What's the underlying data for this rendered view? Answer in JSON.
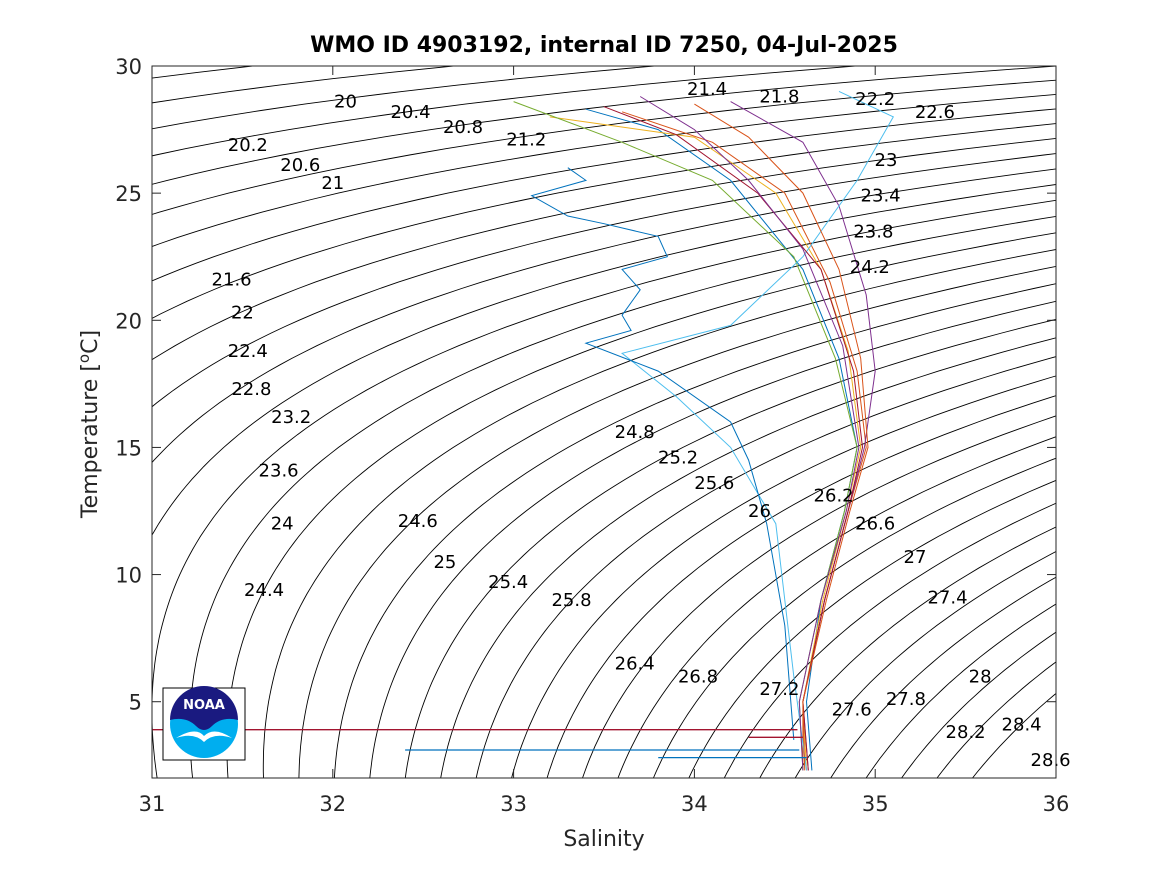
{
  "chart_data": {
    "type": "line",
    "title": "WMO ID 4903192, internal ID 7250, 04-Jul-2025",
    "xlabel": "Salinity",
    "ylabel": "Temperature [°C]",
    "ylabel_main": "Temperature [",
    "ylabel_sup": "o",
    "ylabel_end": "C]",
    "xlim": [
      31,
      36
    ],
    "ylim": [
      2,
      30
    ],
    "xticks": [
      31,
      32,
      33,
      34,
      35,
      36
    ],
    "yticks": [
      5,
      10,
      15,
      20,
      25,
      30
    ],
    "grid": false,
    "legend": "none",
    "logo": "NOAA",
    "density_contours": {
      "color": "#000000",
      "labels": [
        {
          "text": "20",
          "s": 32.07,
          "t": 28.6
        },
        {
          "text": "20.4",
          "s": 32.43,
          "t": 28.2
        },
        {
          "text": "20.8",
          "s": 32.72,
          "t": 27.6
        },
        {
          "text": "21.2",
          "s": 33.07,
          "t": 27.1
        },
        {
          "text": "21.4",
          "s": 34.07,
          "t": 29.1
        },
        {
          "text": "21.8",
          "s": 34.47,
          "t": 28.8
        },
        {
          "text": "22.2",
          "s": 35.0,
          "t": 28.7
        },
        {
          "text": "22.6",
          "s": 35.33,
          "t": 28.2
        },
        {
          "text": "20.2",
          "s": 31.53,
          "t": 26.9
        },
        {
          "text": "20.6",
          "s": 31.82,
          "t": 26.1
        },
        {
          "text": "21",
          "s": 32.0,
          "t": 25.4
        },
        {
          "text": "23",
          "s": 35.06,
          "t": 26.3
        },
        {
          "text": "23.4",
          "s": 35.03,
          "t": 24.9
        },
        {
          "text": "23.8",
          "s": 34.99,
          "t": 23.5
        },
        {
          "text": "24.2",
          "s": 34.97,
          "t": 22.1
        },
        {
          "text": "21.6",
          "s": 31.44,
          "t": 21.6
        },
        {
          "text": "22",
          "s": 31.5,
          "t": 20.3
        },
        {
          "text": "22.4",
          "s": 31.53,
          "t": 18.8
        },
        {
          "text": "22.8",
          "s": 31.55,
          "t": 17.3
        },
        {
          "text": "23.2",
          "s": 31.77,
          "t": 16.2
        },
        {
          "text": "23.6",
          "s": 31.7,
          "t": 14.1
        },
        {
          "text": "24",
          "s": 31.72,
          "t": 12.0
        },
        {
          "text": "24.4",
          "s": 31.62,
          "t": 9.4
        },
        {
          "text": "24.6",
          "s": 32.47,
          "t": 12.1
        },
        {
          "text": "25",
          "s": 32.62,
          "t": 10.5
        },
        {
          "text": "25.4",
          "s": 32.97,
          "t": 9.7
        },
        {
          "text": "25.8",
          "s": 33.32,
          "t": 9.0
        },
        {
          "text": "24.8",
          "s": 33.67,
          "t": 15.6
        },
        {
          "text": "25.2",
          "s": 33.91,
          "t": 14.6
        },
        {
          "text": "25.6",
          "s": 34.11,
          "t": 13.6
        },
        {
          "text": "26",
          "s": 34.36,
          "t": 12.5
        },
        {
          "text": "26.2",
          "s": 34.77,
          "t": 13.1
        },
        {
          "text": "26.6",
          "s": 35.0,
          "t": 12.0
        },
        {
          "text": "27",
          "s": 35.22,
          "t": 10.7
        },
        {
          "text": "27.4",
          "s": 35.4,
          "t": 9.1
        },
        {
          "text": "26.4",
          "s": 33.67,
          "t": 6.5
        },
        {
          "text": "26.8",
          "s": 34.02,
          "t": 6.0
        },
        {
          "text": "27.2",
          "s": 34.47,
          "t": 5.5
        },
        {
          "text": "27.6",
          "s": 34.87,
          "t": 4.7
        },
        {
          "text": "27.8",
          "s": 35.17,
          "t": 5.1
        },
        {
          "text": "28",
          "s": 35.58,
          "t": 6.0
        },
        {
          "text": "28.2",
          "s": 35.5,
          "t": 3.8
        },
        {
          "text": "28.4",
          "s": 35.81,
          "t": 4.1
        },
        {
          "text": "28.6",
          "s": 35.97,
          "t": 2.7
        }
      ]
    },
    "series": [
      {
        "color": "#0072BD",
        "values": [
          [
            34.65,
            2.3
          ],
          [
            34.62,
            5.0
          ],
          [
            34.7,
            9.0
          ],
          [
            34.83,
            12.5
          ],
          [
            34.9,
            15.0
          ],
          [
            34.8,
            18.5
          ],
          [
            34.6,
            22.0
          ],
          [
            34.2,
            25.5
          ],
          [
            33.8,
            27.5
          ],
          [
            33.4,
            28.3
          ]
        ]
      },
      {
        "color": "#D95319",
        "values": [
          [
            34.6,
            2.3
          ],
          [
            34.6,
            5.0
          ],
          [
            34.72,
            9.0
          ],
          [
            34.85,
            12.5
          ],
          [
            34.95,
            15.0
          ],
          [
            34.9,
            18.0
          ],
          [
            34.75,
            21.5
          ],
          [
            34.5,
            25.0
          ],
          [
            34.1,
            27.0
          ],
          [
            33.6,
            28.2
          ]
        ]
      },
      {
        "color": "#EDB120",
        "values": [
          [
            34.62,
            2.3
          ],
          [
            34.6,
            5.0
          ],
          [
            34.71,
            9.0
          ],
          [
            34.84,
            12.5
          ],
          [
            34.92,
            15.0
          ],
          [
            34.85,
            18.8
          ],
          [
            34.7,
            22.0
          ],
          [
            34.45,
            25.0
          ],
          [
            34.0,
            27.2
          ],
          [
            33.2,
            28.0
          ]
        ]
      },
      {
        "color": "#7E2F8E",
        "values": [
          [
            34.63,
            2.3
          ],
          [
            34.6,
            5.0
          ],
          [
            34.72,
            9.0
          ],
          [
            34.85,
            12.5
          ],
          [
            34.94,
            15.0
          ],
          [
            35.0,
            18.0
          ],
          [
            34.95,
            21.0
          ],
          [
            34.8,
            24.5
          ],
          [
            34.6,
            27.0
          ],
          [
            34.2,
            28.6
          ]
        ]
      },
      {
        "color": "#77AC30",
        "values": [
          [
            34.6,
            2.3
          ],
          [
            34.58,
            5.0
          ],
          [
            34.7,
            9.0
          ],
          [
            34.83,
            12.5
          ],
          [
            34.9,
            15.0
          ],
          [
            34.78,
            18.5
          ],
          [
            34.55,
            22.5
          ],
          [
            34.1,
            25.5
          ],
          [
            33.6,
            27.0
          ],
          [
            33.0,
            28.6
          ]
        ]
      },
      {
        "color": "#4DBEEE",
        "values": [
          [
            34.62,
            2.3
          ],
          [
            34.55,
            6.0
          ],
          [
            34.5,
            9.0
          ],
          [
            34.45,
            12.0
          ],
          [
            34.2,
            15.0
          ],
          [
            33.9,
            17.0
          ],
          [
            33.6,
            18.7
          ],
          [
            34.2,
            19.8
          ],
          [
            34.6,
            22.5
          ],
          [
            34.9,
            25.5
          ],
          [
            35.1,
            28.0
          ],
          [
            34.8,
            29.0
          ]
        ]
      },
      {
        "color": "#A2142F",
        "values": [
          [
            34.63,
            2.3
          ],
          [
            34.6,
            5.0
          ],
          [
            34.72,
            9.0
          ],
          [
            34.85,
            12.5
          ],
          [
            34.93,
            15.0
          ],
          [
            34.88,
            18.0
          ],
          [
            34.7,
            22.0
          ],
          [
            34.35,
            25.0
          ],
          [
            33.9,
            27.3
          ],
          [
            33.5,
            28.4
          ]
        ]
      },
      {
        "color": "#0072BD",
        "values": [
          [
            34.55,
            3.5
          ],
          [
            34.5,
            8.0
          ],
          [
            34.4,
            12.0
          ],
          [
            34.3,
            14.5
          ],
          [
            34.2,
            16.0
          ],
          [
            33.8,
            18.0
          ],
          [
            33.4,
            19.1
          ],
          [
            33.65,
            19.6
          ],
          [
            33.6,
            20.2
          ],
          [
            33.7,
            21.2
          ],
          [
            33.6,
            22.0
          ],
          [
            33.85,
            22.5
          ],
          [
            33.8,
            23.3
          ],
          [
            33.5,
            23.8
          ],
          [
            33.3,
            24.1
          ],
          [
            33.1,
            24.9
          ],
          [
            33.4,
            25.5
          ],
          [
            33.3,
            26.0
          ]
        ]
      },
      {
        "color": "#D95319",
        "values": [
          [
            34.61,
            2.3
          ],
          [
            34.6,
            5.0
          ],
          [
            34.73,
            9.0
          ],
          [
            34.86,
            12.5
          ],
          [
            34.96,
            15.0
          ],
          [
            34.92,
            18.5
          ],
          [
            34.8,
            22.0
          ],
          [
            34.6,
            25.0
          ],
          [
            34.3,
            27.2
          ],
          [
            34.0,
            28.5
          ]
        ]
      },
      {
        "color": "#7E2F8E",
        "values": [
          [
            34.6,
            2.3
          ],
          [
            34.58,
            5.0
          ],
          [
            34.7,
            9.0
          ],
          [
            34.84,
            12.5
          ],
          [
            34.91,
            15.0
          ],
          [
            34.82,
            19.0
          ],
          [
            34.6,
            22.8
          ],
          [
            34.3,
            25.5
          ],
          [
            34.0,
            27.5
          ],
          [
            33.7,
            28.8
          ]
        ]
      }
    ],
    "spikes": [
      {
        "color": "#A2142F",
        "t": 3.9,
        "s_min": 31.0,
        "s_max": 34.57
      },
      {
        "color": "#A2142F",
        "t": 3.6,
        "s_min": 34.3,
        "s_max": 34.6
      },
      {
        "color": "#0072BD",
        "t": 3.1,
        "s_min": 32.4,
        "s_max": 34.58
      },
      {
        "color": "#0072BD",
        "t": 2.8,
        "s_min": 33.8,
        "s_max": 34.62
      }
    ]
  }
}
